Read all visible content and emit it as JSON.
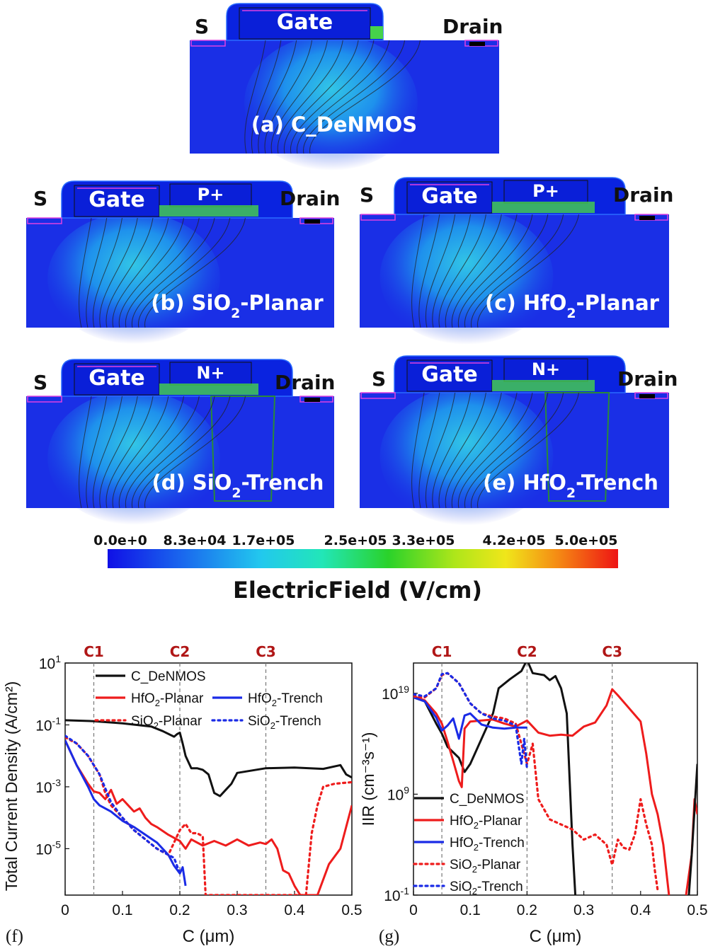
{
  "colors": {
    "device_bg": "#1a2fe6",
    "gate_fill": "#0a23e0",
    "red": "#ee1c1c",
    "blue": "#1a2be6",
    "black": "#111111",
    "label_red": "#b01616",
    "marker_grey": "#777777"
  },
  "devices": [
    {
      "id": "a",
      "source": "S",
      "gate": "Gate",
      "implant": "",
      "drain": "Drain",
      "caption": "(a) C_DeNMOS"
    },
    {
      "id": "b",
      "source": "S",
      "gate": "Gate",
      "implant": "P+",
      "drain": "Drain",
      "caption_pre": "(b) SiO",
      "caption_sub": "2",
      "caption_post": "-Planar"
    },
    {
      "id": "c",
      "source": "S",
      "gate": "Gate",
      "implant": "P+",
      "drain": "Drain",
      "caption_pre": "(c) HfO",
      "caption_sub": "2",
      "caption_post": "-Planar"
    },
    {
      "id": "d",
      "source": "S",
      "gate": "Gate",
      "implant": "N+",
      "drain": "Drain",
      "caption_pre": "(d) SiO",
      "caption_sub": "2",
      "caption_post": "-Trench"
    },
    {
      "id": "e",
      "source": "S",
      "gate": "Gate",
      "implant": "N+",
      "drain": "Drain",
      "caption_pre": "(e) HfO",
      "caption_sub": "2",
      "caption_post": "-Trench"
    }
  ],
  "colorbar": {
    "ticks": [
      "0.0e+0",
      "8.3e+04",
      "1.7e+05",
      "2.5e+05",
      "3.3e+05",
      "4.2e+05",
      "5.0e+05"
    ],
    "title": "ElectricField (V/cm)",
    "range": [
      0,
      500000
    ]
  },
  "chart_data": [
    {
      "panel": "(f)",
      "type": "line",
      "ylabel": "Total Current Density (A/cm²)",
      "xlabel": "C (μm)",
      "xlim": [
        0,
        0.5
      ],
      "ylim_log10": [
        -6.5,
        1
      ],
      "yscale": "log",
      "x_ticks": [
        "0",
        "0.1",
        "0.2",
        "0.3",
        "0.4",
        "0.5"
      ],
      "y_ticks": [
        {
          "base": "10",
          "exp": "1",
          "v": 1
        },
        {
          "base": "10",
          "exp": "-1",
          "v": -1
        },
        {
          "base": "10",
          "exp": "-3",
          "v": -3
        },
        {
          "base": "10",
          "exp": "-5",
          "v": -5
        }
      ],
      "markers": [
        {
          "name": "C1",
          "x": 0.05
        },
        {
          "name": "C2",
          "x": 0.2
        },
        {
          "name": "C3",
          "x": 0.35
        }
      ],
      "series": [
        {
          "name": "C_DeNMOS",
          "color": "#111111",
          "dash": "solid",
          "x": [
            0,
            0.05,
            0.1,
            0.15,
            0.17,
            0.19,
            0.195,
            0.2,
            0.205,
            0.21,
            0.22,
            0.23,
            0.24,
            0.25,
            0.26,
            0.27,
            0.28,
            0.29,
            0.3,
            0.35,
            0.4,
            0.45,
            0.48,
            0.49,
            0.5
          ],
          "y": [
            -0.85,
            -0.88,
            -0.95,
            -1.05,
            -1.2,
            -1.38,
            -1.3,
            -1.25,
            -1.6,
            -2.0,
            -2.4,
            -2.4,
            -2.45,
            -2.6,
            -3.2,
            -3.3,
            -3.1,
            -2.9,
            -2.55,
            -2.4,
            -2.38,
            -2.42,
            -2.3,
            -2.6,
            -2.7
          ]
        },
        {
          "name": "HfO2-Planar",
          "color": "#ee1c1c",
          "dash": "solid",
          "x": [
            0,
            0.02,
            0.04,
            0.05,
            0.06,
            0.07,
            0.08,
            0.09,
            0.1,
            0.11,
            0.12,
            0.13,
            0.14,
            0.15,
            0.16,
            0.18,
            0.2,
            0.21,
            0.22,
            0.24,
            0.26,
            0.28,
            0.3,
            0.32,
            0.34,
            0.35,
            0.36,
            0.37,
            0.38,
            0.39,
            0.4,
            0.41,
            0.44,
            0.46,
            0.48,
            0.5
          ],
          "y": [
            -1.5,
            -2.3,
            -2.9,
            -3.15,
            -3.2,
            -3.4,
            -3.1,
            -3.55,
            -3.4,
            -3.6,
            -3.8,
            -3.7,
            -4.0,
            -4.2,
            -4.3,
            -4.55,
            -4.75,
            -5.0,
            -4.7,
            -4.9,
            -4.75,
            -4.9,
            -4.7,
            -4.9,
            -4.8,
            -4.85,
            -4.7,
            -5.0,
            -5.7,
            -5.8,
            -6.2,
            -6.5,
            -6.5,
            -5.5,
            -5.0,
            -3.6
          ]
        },
        {
          "name": "HfO2-Trench",
          "color": "#1a2be6",
          "dash": "solid",
          "x": [
            0,
            0.02,
            0.04,
            0.05,
            0.06,
            0.08,
            0.1,
            0.12,
            0.14,
            0.16,
            0.18,
            0.19,
            0.2,
            0.205,
            0.21
          ],
          "y": [
            -1.5,
            -2.3,
            -3.0,
            -3.4,
            -3.6,
            -3.8,
            -4.1,
            -4.3,
            -4.55,
            -4.8,
            -5.2,
            -5.55,
            -5.8,
            -5.6,
            -6.2
          ]
        },
        {
          "name": "SiO2-Planar",
          "color": "#ee1c1c",
          "dash": "dot",
          "x": [
            0,
            0.02,
            0.04,
            0.05,
            0.06,
            0.07,
            0.08,
            0.1,
            0.12,
            0.14,
            0.16,
            0.18,
            0.2,
            0.21,
            0.22,
            0.23,
            0.24,
            0.245,
            0.25,
            0.26,
            0.28,
            0.3,
            0.33,
            0.36,
            0.38,
            0.4,
            0.42,
            0.43,
            0.44,
            0.45,
            0.47,
            0.5
          ],
          "y": [
            -1.4,
            -1.6,
            -2.0,
            -2.3,
            -2.6,
            -3.2,
            -3.6,
            -4.0,
            -4.4,
            -4.7,
            -5.0,
            -5.2,
            -4.4,
            -4.2,
            -4.5,
            -4.5,
            -4.6,
            -6.5,
            -6.5,
            -6.5,
            -6.5,
            -6.5,
            -6.5,
            -6.5,
            -6.5,
            -6.5,
            -6.5,
            -4.5,
            -3.6,
            -3.0,
            -2.9,
            -2.85
          ]
        },
        {
          "name": "SiO2-Trench",
          "color": "#1a2be6",
          "dash": "dot",
          "x": [
            0,
            0.02,
            0.04,
            0.05,
            0.06,
            0.08,
            0.1,
            0.12,
            0.14,
            0.16,
            0.18,
            0.19,
            0.195,
            0.2
          ],
          "y": [
            -1.35,
            -1.6,
            -2.0,
            -2.3,
            -2.6,
            -3.5,
            -4.0,
            -4.4,
            -4.7,
            -5.0,
            -5.2,
            -5.3,
            -5.55,
            -5.8
          ]
        }
      ],
      "legend": [
        {
          "name": "C_DeNMOS",
          "pre": "C_DeNMOS",
          "sub": "",
          "post": "",
          "color": "#111111",
          "dash": "solid"
        },
        {
          "name": "HfO2-Planar",
          "pre": "HfO",
          "sub": "2",
          "post": "-Planar",
          "color": "#ee1c1c",
          "dash": "solid"
        },
        {
          "name": "HfO2-Trench",
          "pre": "HfO",
          "sub": "2",
          "post": "-Trench",
          "color": "#1a2be6",
          "dash": "solid"
        },
        {
          "name": "SiO2-Planar",
          "pre": "SiO",
          "sub": "2",
          "post": "-Planar",
          "color": "#ee1c1c",
          "dash": "dot"
        },
        {
          "name": "SiO2-Trench",
          "pre": "SiO",
          "sub": "2",
          "post": "-Trench",
          "color": "#1a2be6",
          "dash": "dot"
        }
      ]
    },
    {
      "panel": "(g)",
      "type": "line",
      "ylabel": "IIR (cm⁻³s⁻¹)",
      "xlabel": "C (μm)",
      "xlim": [
        0,
        0.5
      ],
      "ylim_log10": [
        -1,
        22
      ],
      "yscale": "log",
      "x_ticks": [
        "0",
        "0.1",
        "0.2",
        "0.3",
        "0.4",
        "0.5"
      ],
      "y_ticks": [
        {
          "base": "10",
          "exp": "19",
          "v": 19
        },
        {
          "base": "10",
          "exp": "9",
          "v": 9
        },
        {
          "base": "10",
          "exp": "-1",
          "v": -1
        }
      ],
      "markers": [
        {
          "name": "C1",
          "x": 0.05
        },
        {
          "name": "C2",
          "x": 0.2
        },
        {
          "name": "C3",
          "x": 0.35
        }
      ],
      "series": [
        {
          "name": "C_DeNMOS",
          "color": "#111111",
          "dash": "solid",
          "x": [
            0,
            0.02,
            0.04,
            0.05,
            0.06,
            0.08,
            0.09,
            0.1,
            0.12,
            0.14,
            0.15,
            0.17,
            0.19,
            0.2,
            0.21,
            0.23,
            0.24,
            0.25,
            0.26,
            0.27,
            0.28,
            0.285
          ],
          "y": [
            18.6,
            18.2,
            16.0,
            15.0,
            13.7,
            12.6,
            11.2,
            12.0,
            14.5,
            17.0,
            19.5,
            20.4,
            21.2,
            22.3,
            21.0,
            20.8,
            20.3,
            20.7,
            19.5,
            17.0,
            4.0,
            -1
          ]
        },
        {
          "name": "HfO2-Planar",
          "color": "#ee1c1c",
          "dash": "solid",
          "x": [
            0,
            0.02,
            0.04,
            0.05,
            0.06,
            0.07,
            0.08,
            0.085,
            0.09,
            0.1,
            0.12,
            0.14,
            0.16,
            0.18,
            0.2,
            0.22,
            0.24,
            0.26,
            0.28,
            0.3,
            0.32,
            0.34,
            0.35,
            0.36,
            0.38,
            0.4,
            0.41,
            0.42,
            0.43,
            0.44,
            0.45
          ],
          "y": [
            18.7,
            18.3,
            17.0,
            16.0,
            14.2,
            12.3,
            10.3,
            9.7,
            15.5,
            16.2,
            16.3,
            16.4,
            16.0,
            15.7,
            16.3,
            15.1,
            14.8,
            14.9,
            14.8,
            15.7,
            16.1,
            17.8,
            19.4,
            18.8,
            17.5,
            16.2,
            13.0,
            9.0,
            7.0,
            4.0,
            -1
          ]
        },
        {
          "name": "HfO2-Trench",
          "color": "#1a2be6",
          "dash": "solid",
          "x": [
            0,
            0.02,
            0.04,
            0.05,
            0.06,
            0.07,
            0.08,
            0.09,
            0.1,
            0.12,
            0.14,
            0.16,
            0.18,
            0.2
          ],
          "y": [
            18.6,
            18.2,
            16.6,
            15.3,
            15.8,
            16.5,
            14.5,
            16.8,
            17.0,
            15.9,
            15.6,
            15.5,
            15.6,
            15.6
          ]
        },
        {
          "name": "SiO2-Planar",
          "color": "#ee1c1c",
          "dash": "dot",
          "x": [
            0,
            0.02,
            0.04,
            0.05,
            0.06,
            0.08,
            0.1,
            0.12,
            0.14,
            0.16,
            0.18,
            0.2,
            0.21,
            0.22,
            0.24,
            0.26,
            0.28,
            0.3,
            0.32,
            0.34,
            0.35,
            0.36,
            0.37,
            0.38,
            0.39,
            0.4,
            0.41,
            0.42,
            0.425,
            0.43
          ],
          "y": [
            18.7,
            18.6,
            19.5,
            20.8,
            21.0,
            20.0,
            18.0,
            17.0,
            16.7,
            16.5,
            16.0,
            12.0,
            14.0,
            8.5,
            6.5,
            6.0,
            5.5,
            4.5,
            5.0,
            4.0,
            2.0,
            4.5,
            3.7,
            3.5,
            5.0,
            8.5,
            6.0,
            4.0,
            1.5,
            -0.5
          ]
        },
        {
          "name": "SiO2-Trench",
          "color": "#1a2be6",
          "dash": "dot",
          "x": [
            0,
            0.02,
            0.04,
            0.05,
            0.06,
            0.08,
            0.1,
            0.12,
            0.14,
            0.16,
            0.18,
            0.19,
            0.195,
            0.2
          ],
          "y": [
            18.9,
            18.7,
            19.5,
            20.9,
            21.0,
            20.0,
            18.0,
            17.0,
            16.5,
            16.3,
            15.8,
            12.0,
            14.5,
            11.5
          ]
        },
        {
          "name": "Edge",
          "color": "#ee1c1c",
          "dash": "solid",
          "x": [
            0.48,
            0.49,
            0.495,
            0.5
          ],
          "y": [
            -1,
            3.0,
            8.5,
            7.0
          ]
        },
        {
          "name": "EdgeBlack",
          "color": "#111111",
          "dash": "solid",
          "x": [
            0.485,
            0.49,
            0.495,
            0.5
          ],
          "y": [
            -1,
            3.0,
            7.5,
            12.0
          ]
        }
      ],
      "legend": [
        {
          "name": "C_DeNMOS",
          "pre": "C_DeNMOS",
          "sub": "",
          "post": "",
          "color": "#111111",
          "dash": "solid"
        },
        {
          "name": "HfO2-Planar",
          "pre": "HfO",
          "sub": "2",
          "post": "-Planar",
          "color": "#ee1c1c",
          "dash": "solid"
        },
        {
          "name": "HfO2-Trench",
          "pre": "HfO",
          "sub": "2",
          "post": "-Trench",
          "color": "#1a2be6",
          "dash": "solid"
        },
        {
          "name": "SiO2-Planar",
          "pre": "SiO",
          "sub": "2",
          "post": "-Planar",
          "color": "#ee1c1c",
          "dash": "dot"
        },
        {
          "name": "SiO2-Trench",
          "pre": "SiO",
          "sub": "2",
          "post": "-Trench",
          "color": "#1a2be6",
          "dash": "dot"
        }
      ]
    }
  ]
}
